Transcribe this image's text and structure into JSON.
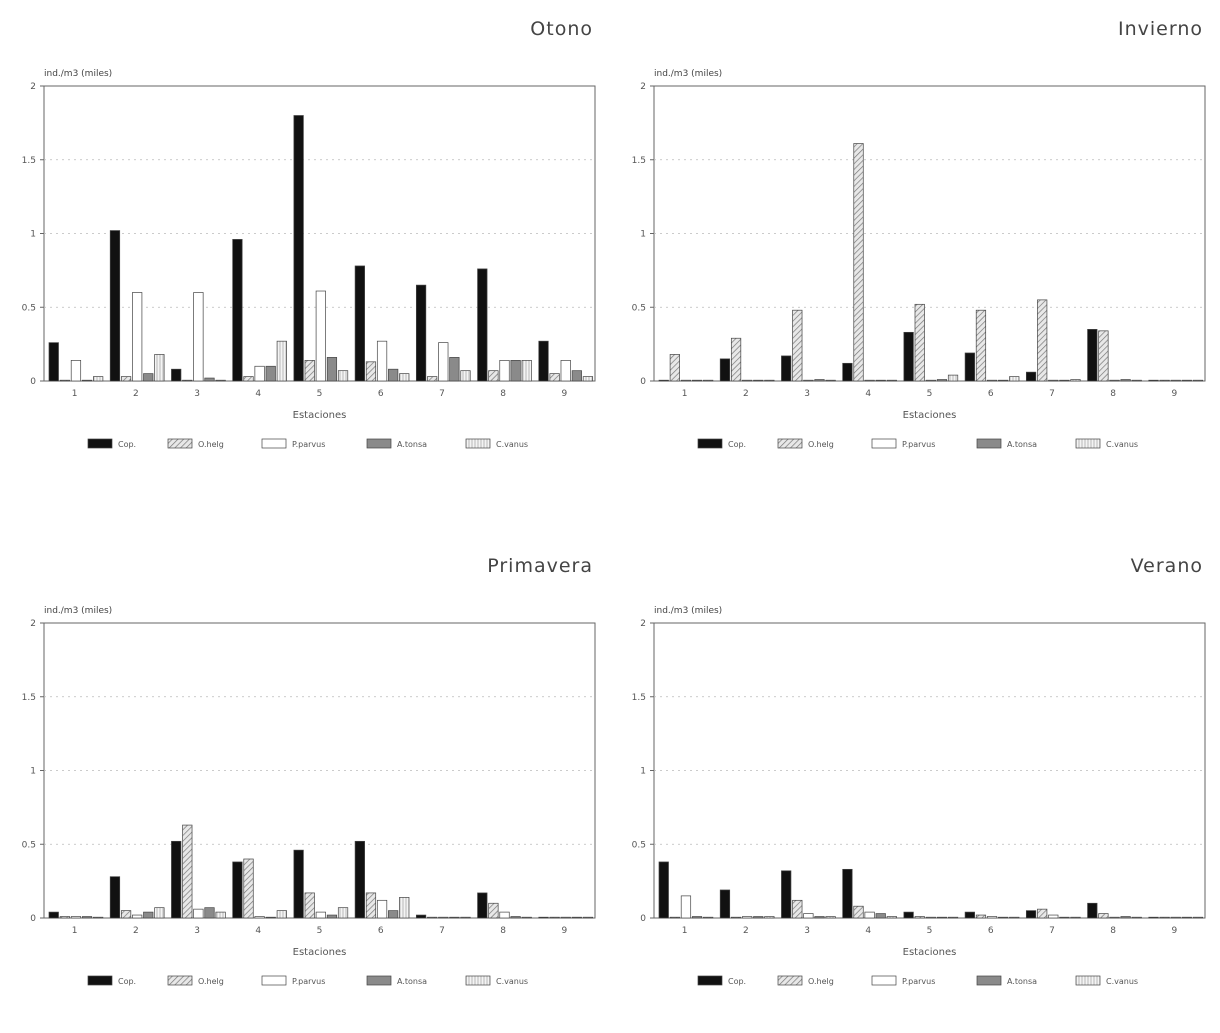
{
  "colors": {
    "cop": "#111111",
    "axis": "#555555",
    "grid": "#cccccc"
  },
  "chart_data": [
    {
      "type": "bar",
      "title": "Otono",
      "ylabel": "ind./m3 (miles)",
      "xlabel": "Estaciones",
      "ylim": [
        0,
        2
      ],
      "yticks": [
        "0",
        "0.5",
        "1",
        "1.5",
        "2"
      ],
      "categories": [
        "1",
        "2",
        "3",
        "4",
        "5",
        "6",
        "7",
        "8",
        "9"
      ],
      "series": [
        {
          "name": "Cop.",
          "values": [
            0.26,
            1.02,
            0.08,
            0.96,
            1.8,
            0.78,
            0.65,
            0.76,
            0.27
          ]
        },
        {
          "name": "O.helg",
          "values": [
            0.0,
            0.03,
            0.0,
            0.03,
            0.14,
            0.13,
            0.03,
            0.07,
            0.05
          ]
        },
        {
          "name": "P.parvus",
          "values": [
            0.14,
            0.6,
            0.6,
            0.1,
            0.61,
            0.27,
            0.26,
            0.14,
            0.14
          ]
        },
        {
          "name": "A.tonsa",
          "values": [
            0.0,
            0.05,
            0.02,
            0.1,
            0.16,
            0.08,
            0.16,
            0.14,
            0.07
          ]
        },
        {
          "name": "C.vanus",
          "values": [
            0.03,
            0.18,
            0.0,
            0.27,
            0.07,
            0.05,
            0.07,
            0.14,
            0.03
          ]
        }
      ]
    },
    {
      "type": "bar",
      "title": "Invierno",
      "ylabel": "ind./m3 (miles)",
      "xlabel": "Estaciones",
      "ylim": [
        0,
        2
      ],
      "yticks": [
        "0",
        "0.5",
        "1",
        "1.5",
        "2"
      ],
      "categories": [
        "1",
        "2",
        "3",
        "4",
        "5",
        "6",
        "7",
        "8",
        "9"
      ],
      "series": [
        {
          "name": "Cop.",
          "values": [
            0.0,
            0.15,
            0.17,
            0.12,
            0.33,
            0.19,
            0.06,
            0.35,
            0.0
          ]
        },
        {
          "name": "O.helg",
          "values": [
            0.18,
            0.29,
            0.48,
            1.61,
            0.52,
            0.48,
            0.55,
            0.34,
            0.0
          ]
        },
        {
          "name": "P.parvus",
          "values": [
            0.0,
            0.0,
            0.0,
            0.0,
            0.0,
            0.0,
            0.0,
            0.0,
            0.0
          ]
        },
        {
          "name": "A.tonsa",
          "values": [
            0.0,
            0.0,
            0.01,
            0.0,
            0.01,
            0.0,
            0.0,
            0.01,
            0.0
          ]
        },
        {
          "name": "C.vanus",
          "values": [
            0.0,
            0.0,
            0.0,
            0.0,
            0.04,
            0.03,
            0.01,
            0.0,
            0.0
          ]
        }
      ]
    },
    {
      "type": "bar",
      "title": "Primavera",
      "ylabel": "ind./m3 (miles)",
      "xlabel": "Estaciones",
      "ylim": [
        0,
        2
      ],
      "yticks": [
        "0",
        "0.5",
        "1",
        "1.5",
        "2"
      ],
      "categories": [
        "1",
        "2",
        "3",
        "4",
        "5",
        "6",
        "7",
        "8",
        "9"
      ],
      "series": [
        {
          "name": "Cop.",
          "values": [
            0.04,
            0.28,
            0.52,
            0.38,
            0.46,
            0.52,
            0.02,
            0.17,
            0.0
          ]
        },
        {
          "name": "O.helg",
          "values": [
            0.01,
            0.05,
            0.63,
            0.4,
            0.17,
            0.17,
            0.0,
            0.1,
            0.0
          ]
        },
        {
          "name": "P.parvus",
          "values": [
            0.01,
            0.02,
            0.06,
            0.01,
            0.04,
            0.12,
            0.0,
            0.04,
            0.0
          ]
        },
        {
          "name": "A.tonsa",
          "values": [
            0.01,
            0.04,
            0.07,
            0.0,
            0.02,
            0.05,
            0.0,
            0.01,
            0.0
          ]
        },
        {
          "name": "C.vanus",
          "values": [
            0.0,
            0.07,
            0.04,
            0.05,
            0.07,
            0.14,
            0.0,
            0.0,
            0.0
          ]
        }
      ]
    },
    {
      "type": "bar",
      "title": "Verano",
      "ylabel": "ind./m3 (miles)",
      "xlabel": "Estaciones",
      "ylim": [
        0,
        2
      ],
      "yticks": [
        "0",
        "0.5",
        "1",
        "1.5",
        "2"
      ],
      "categories": [
        "1",
        "2",
        "3",
        "4",
        "5",
        "6",
        "7",
        "8",
        "9"
      ],
      "series": [
        {
          "name": "Cop.",
          "values": [
            0.38,
            0.19,
            0.32,
            0.33,
            0.04,
            0.04,
            0.05,
            0.1,
            0.0
          ]
        },
        {
          "name": "O.helg",
          "values": [
            0.0,
            0.0,
            0.12,
            0.08,
            0.01,
            0.02,
            0.06,
            0.03,
            0.0
          ]
        },
        {
          "name": "P.parvus",
          "values": [
            0.15,
            0.01,
            0.03,
            0.04,
            0.0,
            0.01,
            0.02,
            0.0,
            0.0
          ]
        },
        {
          "name": "A.tonsa",
          "values": [
            0.01,
            0.01,
            0.01,
            0.03,
            0.0,
            0.0,
            0.0,
            0.01,
            0.0
          ]
        },
        {
          "name": "C.vanus",
          "values": [
            0.0,
            0.01,
            0.01,
            0.01,
            0.0,
            0.0,
            0.0,
            0.0,
            0.0
          ]
        }
      ]
    }
  ]
}
